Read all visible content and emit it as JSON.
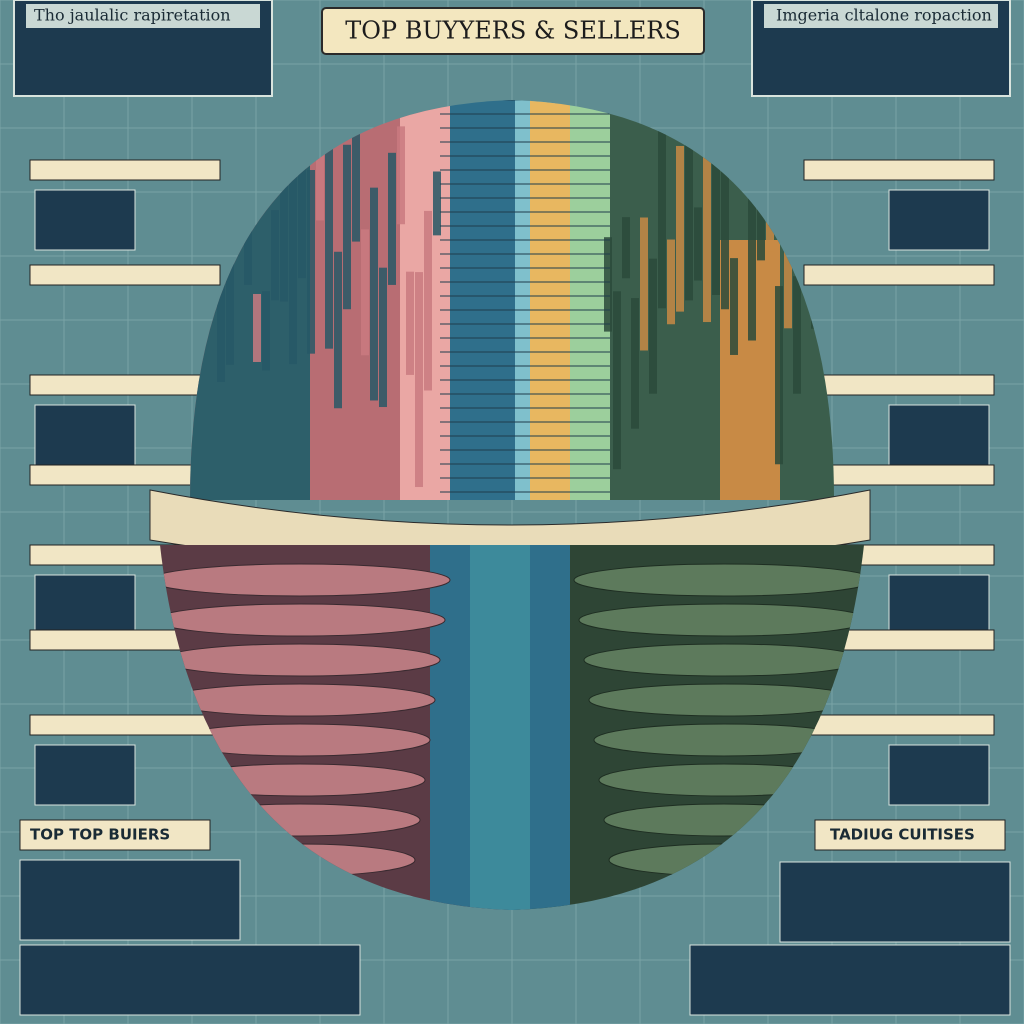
{
  "header": {
    "title": "TOP BUYYERS & SELLERS",
    "left_caption": "Tho jaulalic rapiretation",
    "right_caption": "Imgeria cltalone ropaction"
  },
  "panels": {
    "bottom_left_title": "TOP TOP BUIERS",
    "bottom_right_title": "TADIUG CUITISES"
  }
}
